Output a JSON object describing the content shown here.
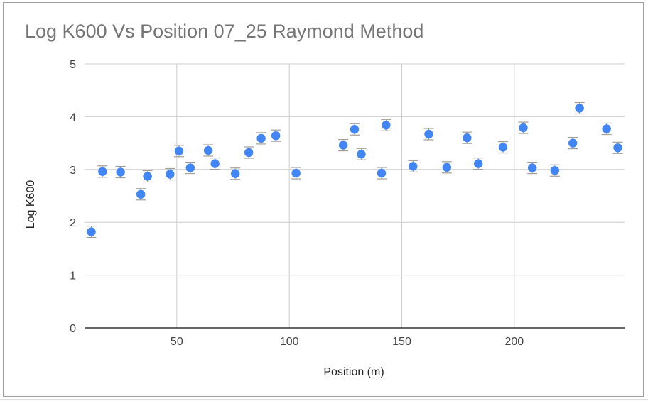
{
  "chart_data": {
    "type": "scatter",
    "title": "Log K600 Vs Position 07_25 Raymond Method",
    "xlabel": "Position (m)",
    "ylabel": "Log K600",
    "xlim": [
      9,
      249
    ],
    "ylim": [
      0,
      5
    ],
    "x_ticks": [
      "50",
      "100",
      "150",
      "200"
    ],
    "y_ticks": [
      "0",
      "1",
      "2",
      "3",
      "4",
      "5"
    ],
    "grid": true,
    "legend": "none",
    "marker_color": "#4285f4",
    "error_bar_color": "#9e9e9e",
    "error_bars": true,
    "x": [
      12,
      17,
      25,
      34,
      37,
      47,
      51,
      56,
      64,
      67,
      76,
      82,
      87.5,
      94,
      103,
      124,
      129,
      132,
      141,
      143,
      155,
      162,
      170,
      179,
      184,
      195,
      204,
      208,
      218,
      226,
      229,
      241,
      246
    ],
    "y": [
      1.82,
      2.96,
      2.95,
      2.53,
      2.87,
      2.91,
      3.35,
      3.03,
      3.36,
      3.11,
      2.92,
      3.32,
      3.59,
      3.64,
      2.93,
      3.46,
      3.76,
      3.29,
      2.93,
      3.84,
      3.06,
      3.67,
      3.04,
      3.6,
      3.11,
      3.42,
      3.79,
      3.03,
      2.98,
      3.5,
      4.16,
      3.77,
      3.41
    ]
  }
}
